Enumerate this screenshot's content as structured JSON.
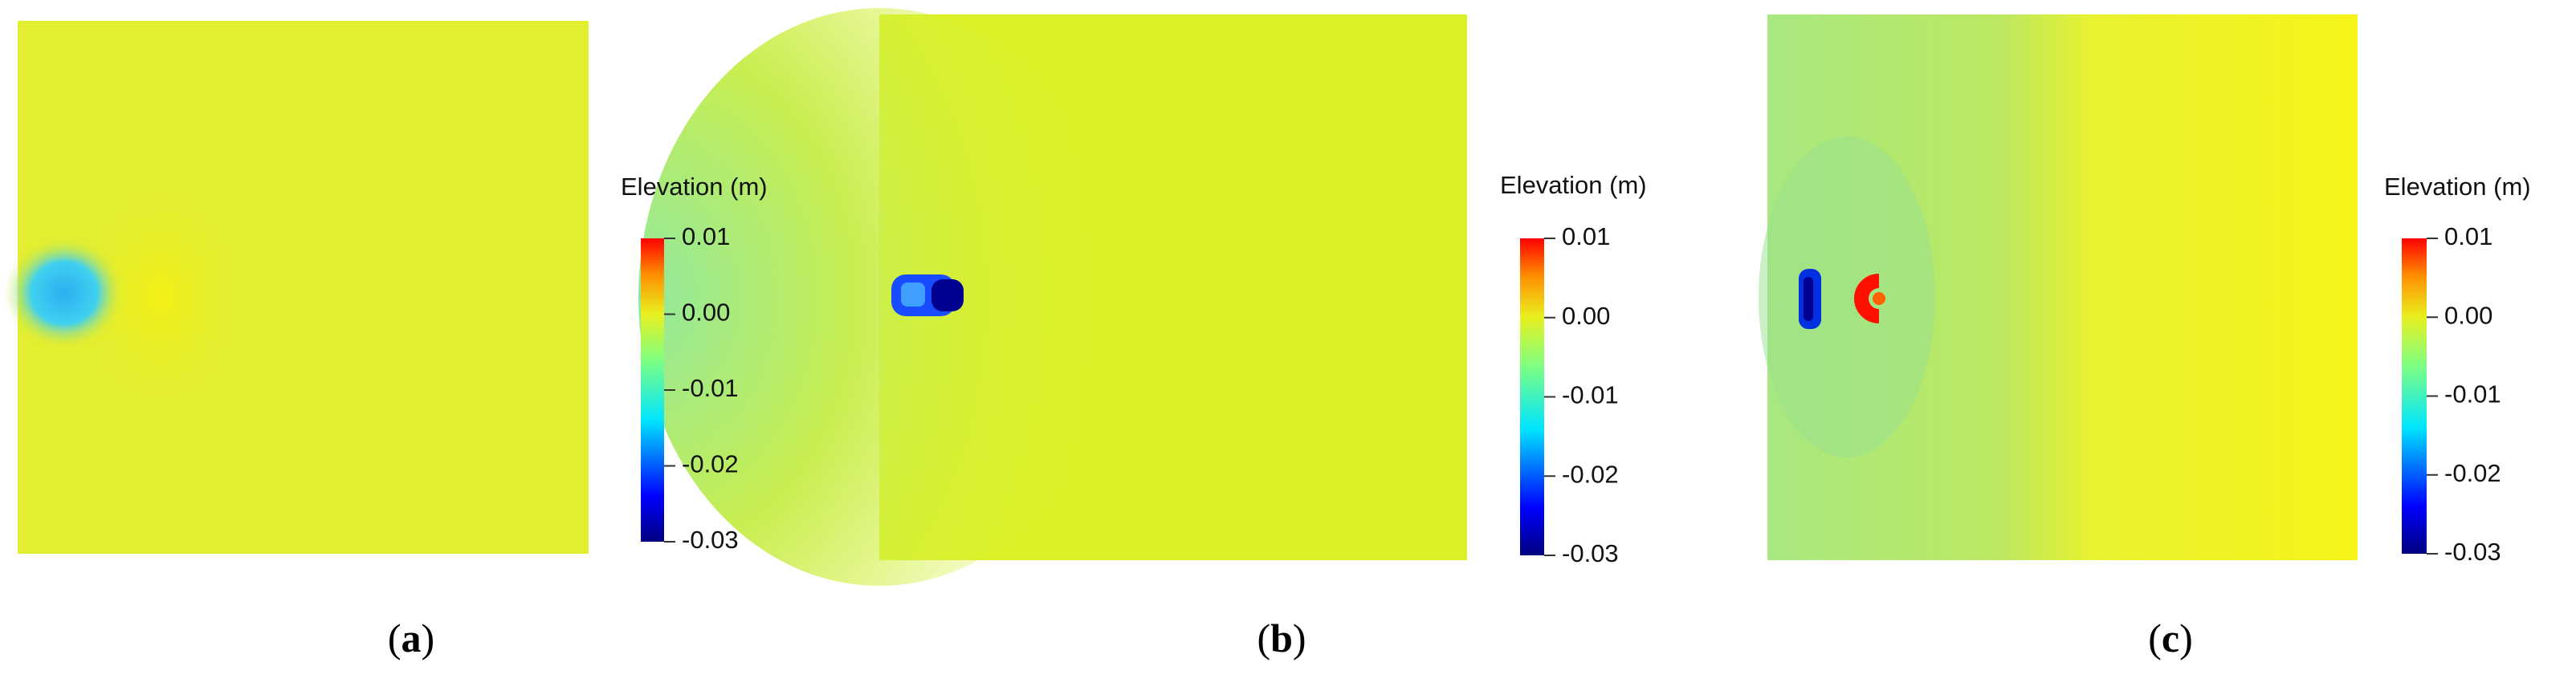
{
  "panels": [
    {
      "caption": [
        "(",
        "a",
        ")"
      ],
      "colorbar": {
        "title": "Elevation (m)",
        "range": [
          -0.03,
          0.01
        ],
        "ticks": [
          {
            "value": 0.01,
            "label": "0.01"
          },
          {
            "value": 0,
            "label": "0.00"
          },
          {
            "value": -0.01,
            "label": "-0.01"
          },
          {
            "value": -0.02,
            "label": "-0.02"
          },
          {
            "value": -0.03,
            "label": "-0.03"
          }
        ]
      }
    },
    {
      "caption": [
        "(",
        "b",
        ")"
      ],
      "colorbar": {
        "title": "Elevation (m)",
        "range": [
          -0.03,
          0.01
        ],
        "ticks": [
          {
            "value": 0.01,
            "label": "0.01"
          },
          {
            "value": 0,
            "label": "0.00"
          },
          {
            "value": -0.01,
            "label": "-0.01"
          },
          {
            "value": -0.02,
            "label": "-0.02"
          },
          {
            "value": -0.03,
            "label": "-0.03"
          }
        ]
      }
    },
    {
      "caption": [
        "(",
        "c",
        ")"
      ],
      "colorbar": {
        "title": "Elevation (m)",
        "range": [
          -0.03,
          0.01
        ],
        "ticks": [
          {
            "value": 0.01,
            "label": "0.01"
          },
          {
            "value": 0,
            "label": "0.00"
          },
          {
            "value": -0.01,
            "label": "-0.01"
          },
          {
            "value": -0.02,
            "label": "-0.02"
          },
          {
            "value": -0.03,
            "label": "-0.03"
          }
        ]
      }
    }
  ]
}
